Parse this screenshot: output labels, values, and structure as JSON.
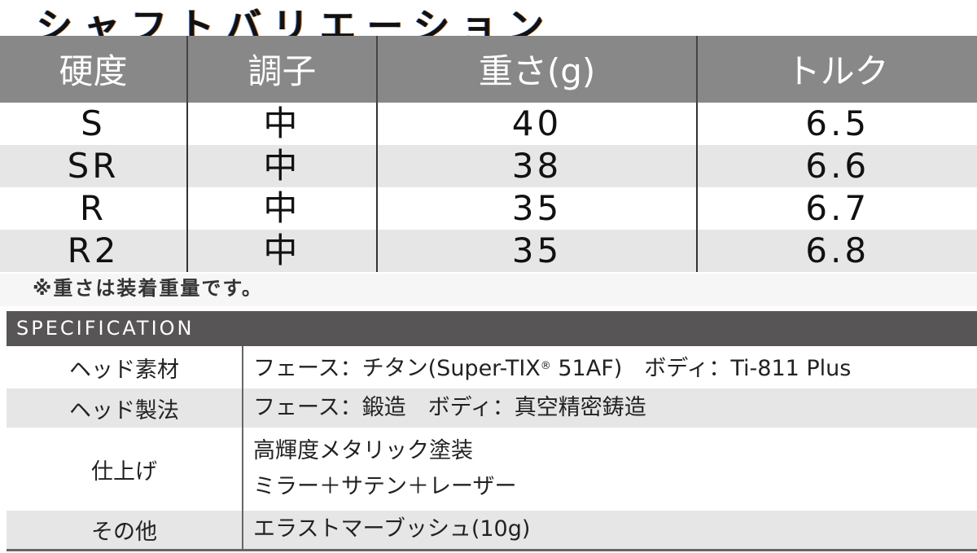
{
  "title": "シャフトバリエーション",
  "shaft_table": {
    "headers": [
      "硬度",
      "調子",
      "重さ(g)",
      "トルク"
    ],
    "rows": [
      [
        "S",
        "中",
        "40",
        "6.5"
      ],
      [
        "SR",
        "中",
        "38",
        "6.6"
      ],
      [
        "R",
        "中",
        "35",
        "6.7"
      ],
      [
        "R2",
        "中",
        "35",
        "6.8"
      ]
    ]
  },
  "note": "※重さは装着重量です。",
  "spec": {
    "heading": "SPECIFICATION",
    "rows": [
      {
        "label": "ヘッド素材",
        "pre": "フェース：チタン(Super-TIX",
        "reg": "®",
        "post": " 51AF)　ボディ：Ti-811 Plus"
      },
      {
        "label": "ヘッド製法",
        "line1": "フェース：鍛造　ボディ：真空精密鋳造"
      },
      {
        "label": "仕上げ",
        "line1": "高輝度メタリック塗装",
        "line2": "ミラー＋サテン＋レーザー"
      },
      {
        "label": "その他",
        "line1": "エラストマーブッシュ(10g)"
      }
    ]
  }
}
